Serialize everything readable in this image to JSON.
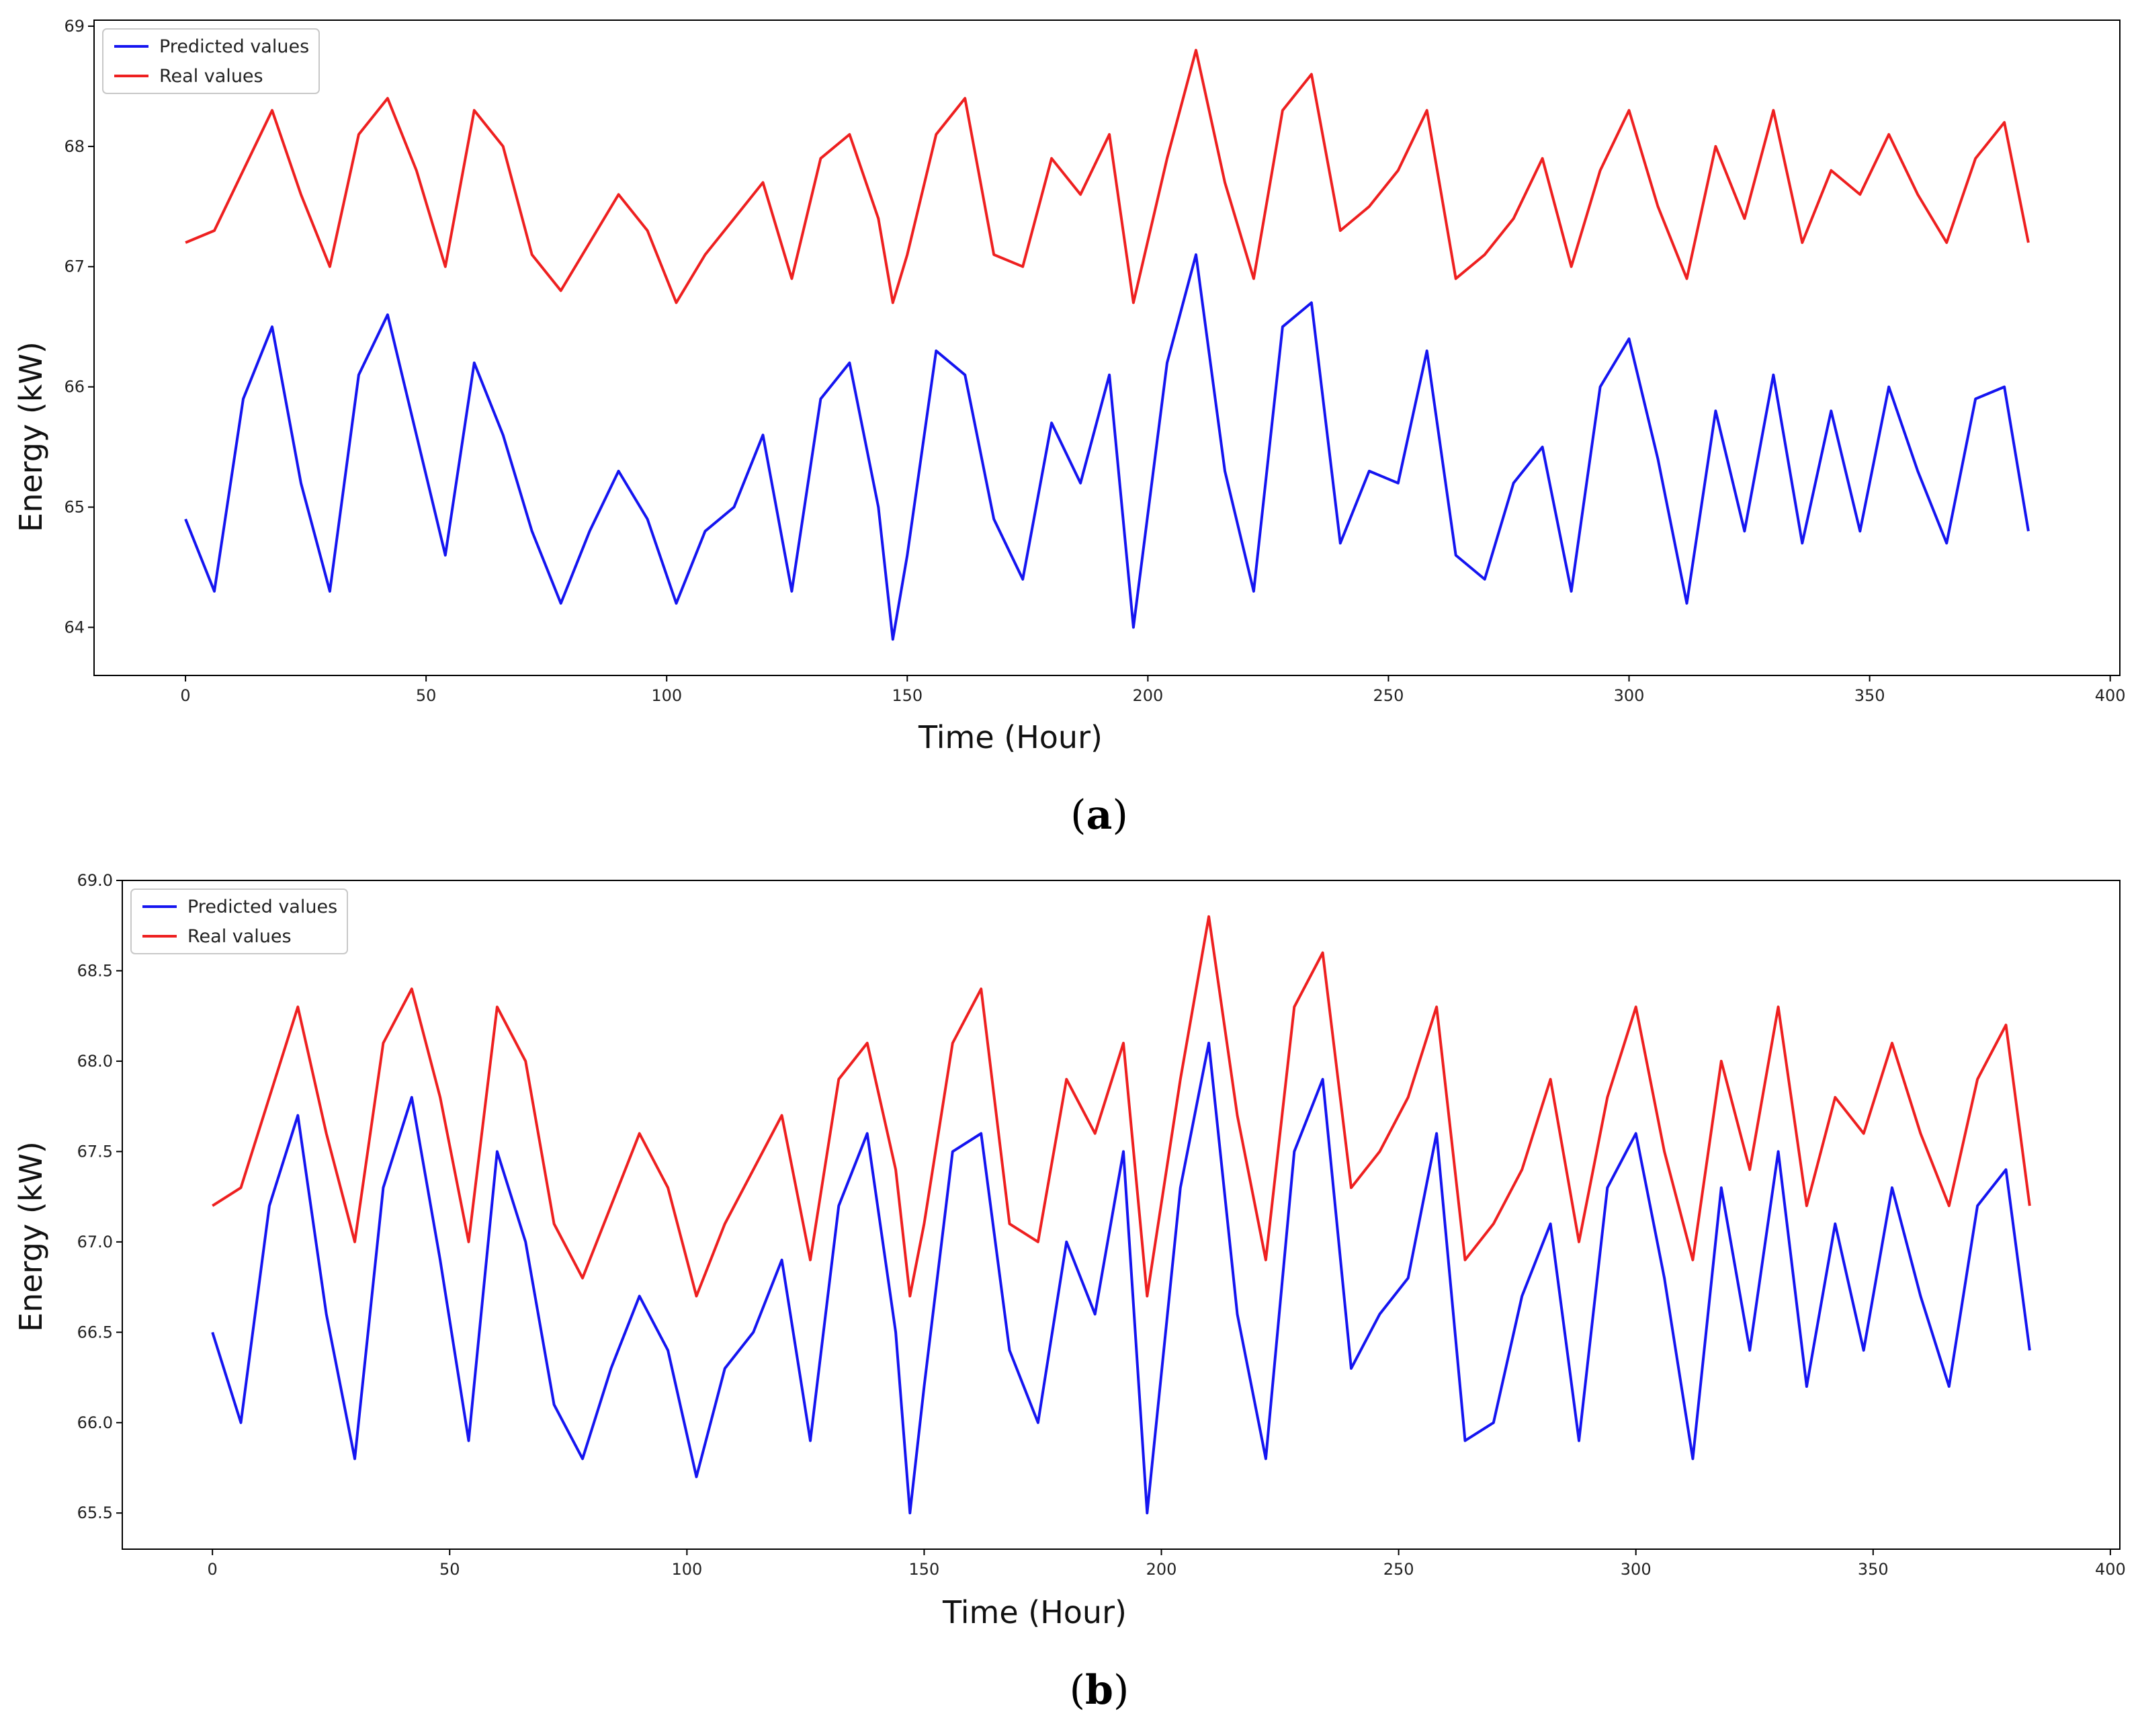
{
  "figure": {
    "panels": [
      "a",
      "b"
    ]
  },
  "chart_data": [
    {
      "type": "line",
      "panel": "a",
      "caption": "(a)",
      "caption_letter": "a",
      "title": "",
      "xlabel": "Time (Hour)",
      "ylabel": "Energy (kW)",
      "xlim": [
        -19,
        402
      ],
      "ylim": [
        63.6,
        69.05
      ],
      "xticks": [
        0,
        50,
        100,
        150,
        200,
        250,
        300,
        350,
        400
      ],
      "xtick_labels": [
        "0",
        "50",
        "100",
        "150",
        "200",
        "250",
        "300",
        "350",
        "400"
      ],
      "yticks": [
        64,
        65,
        66,
        67,
        68,
        69
      ],
      "ytick_labels": [
        "64",
        "65",
        "66",
        "67",
        "68",
        "69"
      ],
      "grid": false,
      "legend_position": "top-left",
      "series": [
        {
          "name": "Predicted values",
          "color": "#1515f0",
          "x": [
            0,
            6,
            12,
            18,
            24,
            30,
            36,
            42,
            48,
            54,
            60,
            66,
            72,
            78,
            84,
            90,
            96,
            102,
            108,
            114,
            120,
            126,
            132,
            138,
            144,
            147,
            150,
            156,
            162,
            168,
            174,
            180,
            186,
            192,
            197,
            204,
            210,
            216,
            222,
            228,
            234,
            240,
            246,
            252,
            258,
            264,
            270,
            276,
            282,
            288,
            294,
            300,
            306,
            312,
            318,
            324,
            330,
            336,
            342,
            348,
            354,
            360,
            366,
            372,
            378,
            383
          ],
          "values": [
            64.9,
            64.3,
            65.9,
            66.5,
            65.2,
            64.3,
            66.1,
            66.6,
            65.6,
            64.6,
            66.2,
            65.6,
            64.8,
            64.2,
            64.8,
            65.3,
            64.9,
            64.2,
            64.8,
            65.0,
            65.6,
            64.3,
            65.9,
            66.2,
            65.0,
            63.9,
            64.6,
            66.3,
            66.1,
            64.9,
            64.4,
            65.7,
            65.2,
            66.1,
            64.0,
            66.2,
            67.1,
            65.3,
            64.3,
            66.5,
            66.7,
            64.7,
            65.3,
            65.2,
            66.3,
            64.6,
            64.4,
            65.2,
            65.5,
            64.3,
            66.0,
            66.4,
            65.4,
            64.2,
            65.8,
            64.8,
            66.1,
            64.7,
            65.8,
            64.8,
            66.0,
            65.3,
            64.7,
            65.9,
            66.0,
            64.8
          ]
        },
        {
          "name": "Real values",
          "color": "#ee2020",
          "x": [
            0,
            6,
            12,
            18,
            24,
            30,
            36,
            42,
            48,
            54,
            60,
            66,
            72,
            78,
            84,
            90,
            96,
            102,
            108,
            114,
            120,
            126,
            132,
            138,
            144,
            147,
            150,
            156,
            162,
            168,
            174,
            180,
            186,
            192,
            197,
            204,
            210,
            216,
            222,
            228,
            234,
            240,
            246,
            252,
            258,
            264,
            270,
            276,
            282,
            288,
            294,
            300,
            306,
            312,
            318,
            324,
            330,
            336,
            342,
            348,
            354,
            360,
            366,
            372,
            378,
            383
          ],
          "values": [
            67.2,
            67.3,
            67.8,
            68.3,
            67.6,
            67.0,
            68.1,
            68.4,
            67.8,
            67.0,
            68.3,
            68.0,
            67.1,
            66.8,
            67.2,
            67.6,
            67.3,
            66.7,
            67.1,
            67.4,
            67.7,
            66.9,
            67.9,
            68.1,
            67.4,
            66.7,
            67.1,
            68.1,
            68.4,
            67.1,
            67.0,
            67.9,
            67.6,
            68.1,
            66.7,
            67.9,
            68.8,
            67.7,
            66.9,
            68.3,
            68.6,
            67.3,
            67.5,
            67.8,
            68.3,
            66.9,
            67.1,
            67.4,
            67.9,
            67.0,
            67.8,
            68.3,
            67.5,
            66.9,
            68.0,
            67.4,
            68.3,
            67.2,
            67.8,
            67.6,
            68.1,
            67.6,
            67.2,
            67.9,
            68.2,
            67.2
          ]
        }
      ]
    },
    {
      "type": "line",
      "panel": "b",
      "caption": "(b)",
      "caption_letter": "b",
      "title": "",
      "xlabel": "Time (Hour)",
      "ylabel": "Energy (kW)",
      "xlim": [
        -19,
        402
      ],
      "ylim": [
        65.3,
        69.0
      ],
      "xticks": [
        0,
        50,
        100,
        150,
        200,
        250,
        300,
        350,
        400
      ],
      "xtick_labels": [
        "0",
        "50",
        "100",
        "150",
        "200",
        "250",
        "300",
        "350",
        "400"
      ],
      "yticks": [
        65.5,
        66.0,
        66.5,
        67.0,
        67.5,
        68.0,
        68.5,
        69.0
      ],
      "ytick_labels": [
        "65.5",
        "66.0",
        "66.5",
        "67.0",
        "67.5",
        "68.0",
        "68.5",
        "69.0"
      ],
      "grid": false,
      "legend_position": "top-left",
      "series": [
        {
          "name": "Predicted values",
          "color": "#1515f0",
          "x": [
            0,
            6,
            12,
            18,
            24,
            30,
            36,
            42,
            48,
            54,
            60,
            66,
            72,
            78,
            84,
            90,
            96,
            102,
            108,
            114,
            120,
            126,
            132,
            138,
            144,
            147,
            150,
            156,
            162,
            168,
            174,
            180,
            186,
            192,
            197,
            204,
            210,
            216,
            222,
            228,
            234,
            240,
            246,
            252,
            258,
            264,
            270,
            276,
            282,
            288,
            294,
            300,
            306,
            312,
            318,
            324,
            330,
            336,
            342,
            348,
            354,
            360,
            366,
            372,
            378,
            383
          ],
          "values": [
            66.5,
            66.0,
            67.2,
            67.7,
            66.6,
            65.8,
            67.3,
            67.8,
            66.9,
            65.9,
            67.5,
            67.0,
            66.1,
            65.8,
            66.3,
            66.7,
            66.4,
            65.7,
            66.3,
            66.5,
            66.9,
            65.9,
            67.2,
            67.6,
            66.5,
            65.5,
            66.2,
            67.5,
            67.6,
            66.4,
            66.0,
            67.0,
            66.6,
            67.5,
            65.5,
            67.3,
            68.1,
            66.6,
            65.8,
            67.5,
            67.9,
            66.3,
            66.6,
            66.8,
            67.6,
            65.9,
            66.0,
            66.7,
            67.1,
            65.9,
            67.3,
            67.6,
            66.8,
            65.8,
            67.3,
            66.4,
            67.5,
            66.2,
            67.1,
            66.4,
            67.3,
            66.7,
            66.2,
            67.2,
            67.4,
            66.4
          ]
        },
        {
          "name": "Real values",
          "color": "#ee2020",
          "x": [
            0,
            6,
            12,
            18,
            24,
            30,
            36,
            42,
            48,
            54,
            60,
            66,
            72,
            78,
            84,
            90,
            96,
            102,
            108,
            114,
            120,
            126,
            132,
            138,
            144,
            147,
            150,
            156,
            162,
            168,
            174,
            180,
            186,
            192,
            197,
            204,
            210,
            216,
            222,
            228,
            234,
            240,
            246,
            252,
            258,
            264,
            270,
            276,
            282,
            288,
            294,
            300,
            306,
            312,
            318,
            324,
            330,
            336,
            342,
            348,
            354,
            360,
            366,
            372,
            378,
            383
          ],
          "values": [
            67.2,
            67.3,
            67.8,
            68.3,
            67.6,
            67.0,
            68.1,
            68.4,
            67.8,
            67.0,
            68.3,
            68.0,
            67.1,
            66.8,
            67.2,
            67.6,
            67.3,
            66.7,
            67.1,
            67.4,
            67.7,
            66.9,
            67.9,
            68.1,
            67.4,
            66.7,
            67.1,
            68.1,
            68.4,
            67.1,
            67.0,
            67.9,
            67.6,
            68.1,
            66.7,
            67.9,
            68.8,
            67.7,
            66.9,
            68.3,
            68.6,
            67.3,
            67.5,
            67.8,
            68.3,
            66.9,
            67.1,
            67.4,
            67.9,
            67.0,
            67.8,
            68.3,
            67.5,
            66.9,
            68.0,
            67.4,
            68.3,
            67.2,
            67.8,
            67.6,
            68.1,
            67.6,
            67.2,
            67.9,
            68.2,
            67.2
          ]
        }
      ]
    }
  ]
}
